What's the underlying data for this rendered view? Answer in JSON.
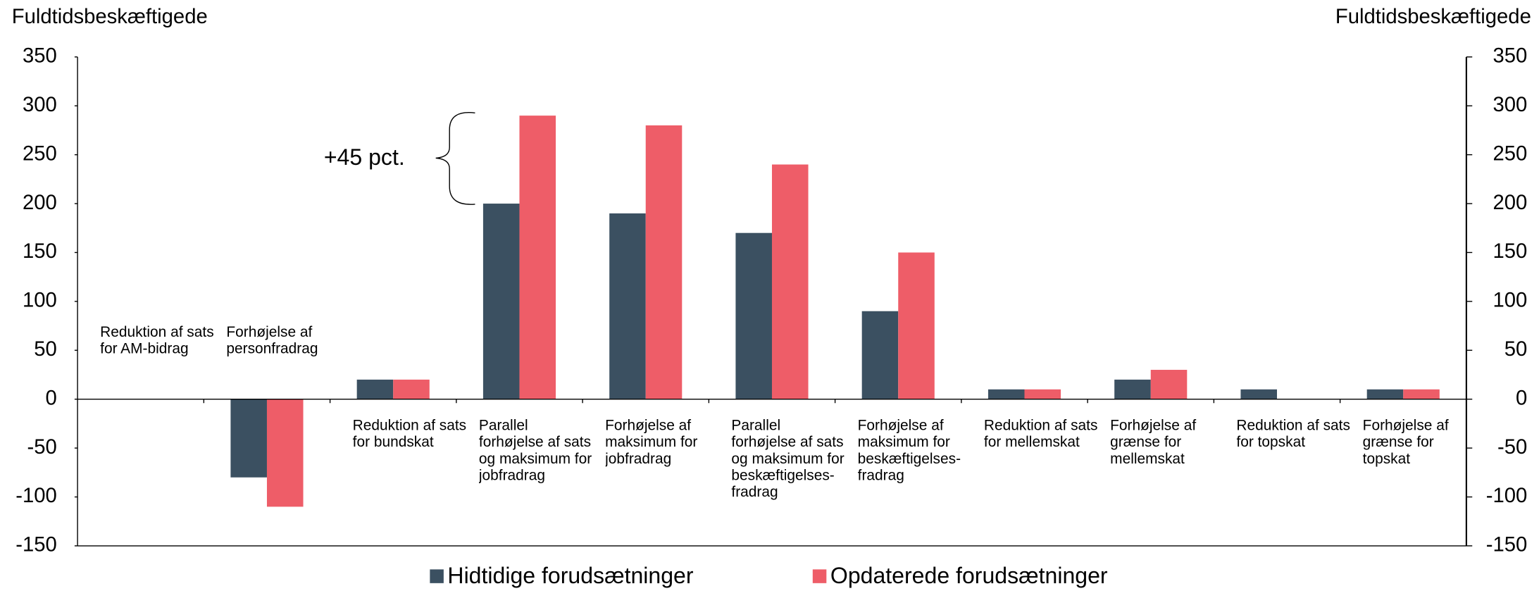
{
  "chart_data": {
    "type": "bar",
    "ylabel": "Fuldtidsbeskæftigede",
    "y2label": "Fuldtidsbeskæftigede",
    "categories": [
      "Reduktion af sats for AM-bidrag",
      "Forhøjelse af personfradrag",
      "Reduktion af sats for bundskat",
      "Parallel forhøjelse af sats og maksimum for jobfradrag",
      "Forhøjelse af maksimum for jobfradrag",
      "Parallel forhøjelse af sats og maksimum for beskæftigelses-fradrag",
      "Forhøjelse af maksimum for beskæftigelses-fradrag",
      "Reduktion af sats for mellemskat",
      "Forhøjelse af grænse for mellemskat",
      "Reduktion af sats for topskat",
      "Forhøjelse af grænse for topskat"
    ],
    "series": [
      {
        "name": "Hidtidige forudsætninger",
        "color": "#3b5061",
        "values": [
          0,
          -80,
          20,
          200,
          190,
          170,
          90,
          10,
          20,
          10,
          10
        ]
      },
      {
        "name": "Opdaterede forudsætninger",
        "color": "#ee5d68",
        "values": [
          0,
          -110,
          20,
          290,
          280,
          240,
          150,
          10,
          30,
          0,
          10
        ]
      }
    ],
    "ylim": [
      -150,
      350
    ],
    "yticks": [
      -150,
      -100,
      -50,
      0,
      50,
      100,
      150,
      200,
      250,
      300,
      350
    ],
    "y2lim": [
      -150,
      350
    ],
    "y2ticks": [
      -150,
      -100,
      -50,
      0,
      50,
      100,
      150,
      200,
      250,
      300,
      350
    ],
    "annotation": "+45 pct."
  }
}
